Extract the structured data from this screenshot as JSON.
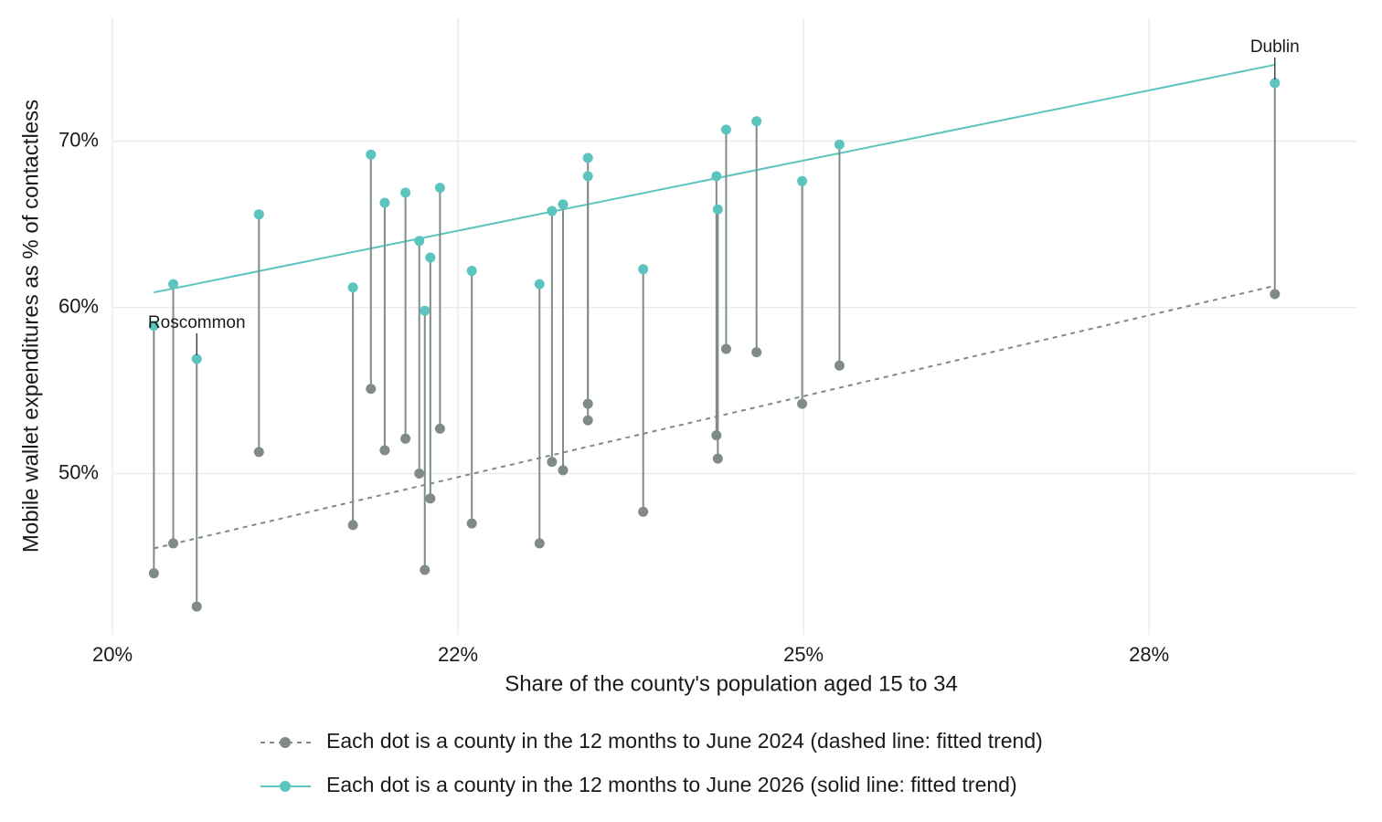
{
  "chart_data": {
    "type": "dumbbell",
    "x_label": "Share of the county's population aged 15 to 34",
    "y_label": "Mobile wallet expenditures as % of contactless",
    "x": [
      20.3,
      20.44,
      20.61,
      21.06,
      21.74,
      21.87,
      21.97,
      22.12,
      22.22,
      22.26,
      22.3,
      22.37,
      22.6,
      23.09,
      23.18,
      23.26,
      23.44,
      23.44,
      23.84,
      24.37,
      24.38,
      24.44,
      24.66,
      24.99,
      25.26,
      28.41
    ],
    "labels": [
      null,
      null,
      "Roscommon",
      null,
      null,
      null,
      null,
      null,
      null,
      null,
      null,
      null,
      null,
      null,
      null,
      null,
      null,
      null,
      null,
      null,
      null,
      null,
      null,
      null,
      null,
      "Dublin"
    ],
    "series": [
      {
        "name": "Each dot is a county in the 12 months to June 2024 (dashed line: fitted trend)",
        "color": "#808a87",
        "line_style": "dashed",
        "values": [
          44.0,
          45.8,
          42.0,
          51.3,
          46.9,
          55.1,
          51.4,
          52.1,
          50.0,
          44.2,
          48.5,
          52.7,
          47.0,
          45.8,
          50.7,
          50.2,
          54.2,
          53.2,
          47.7,
          52.3,
          50.9,
          57.5,
          57.3,
          54.2,
          56.5,
          60.8
        ],
        "trend_x": [
          20.3,
          28.41
        ],
        "trend": [
          45.5,
          61.3
        ]
      },
      {
        "name": "Each dot is a county in the 12 months to June 2026 (solid line: fitted trend)",
        "color": "#5bc4bf",
        "line_style": "solid",
        "values": [
          58.9,
          61.4,
          56.9,
          65.6,
          61.2,
          69.2,
          66.3,
          66.9,
          64.0,
          59.8,
          63.0,
          67.2,
          62.2,
          61.4,
          65.8,
          66.2,
          69.0,
          67.9,
          62.3,
          67.9,
          65.9,
          70.7,
          71.2,
          67.6,
          69.8,
          73.5
        ],
        "trend_x": [
          20.3,
          28.41
        ],
        "trend": [
          60.9,
          74.6
        ]
      }
    ],
    "xlim": [
      20,
      29
    ],
    "ylim": [
      40.3,
      77.4
    ],
    "xticks": [
      {
        "value": 20,
        "label": "20%"
      },
      {
        "value": 22.5,
        "label": "22%"
      },
      {
        "value": 25,
        "label": "25%"
      },
      {
        "value": 27.5,
        "label": "28%"
      }
    ],
    "yticks": [
      {
        "value": 50,
        "label": "50%"
      },
      {
        "value": 60,
        "label": "60%"
      },
      {
        "value": 70,
        "label": "70%"
      }
    ],
    "grid": true,
    "legend_position": "bottom"
  }
}
